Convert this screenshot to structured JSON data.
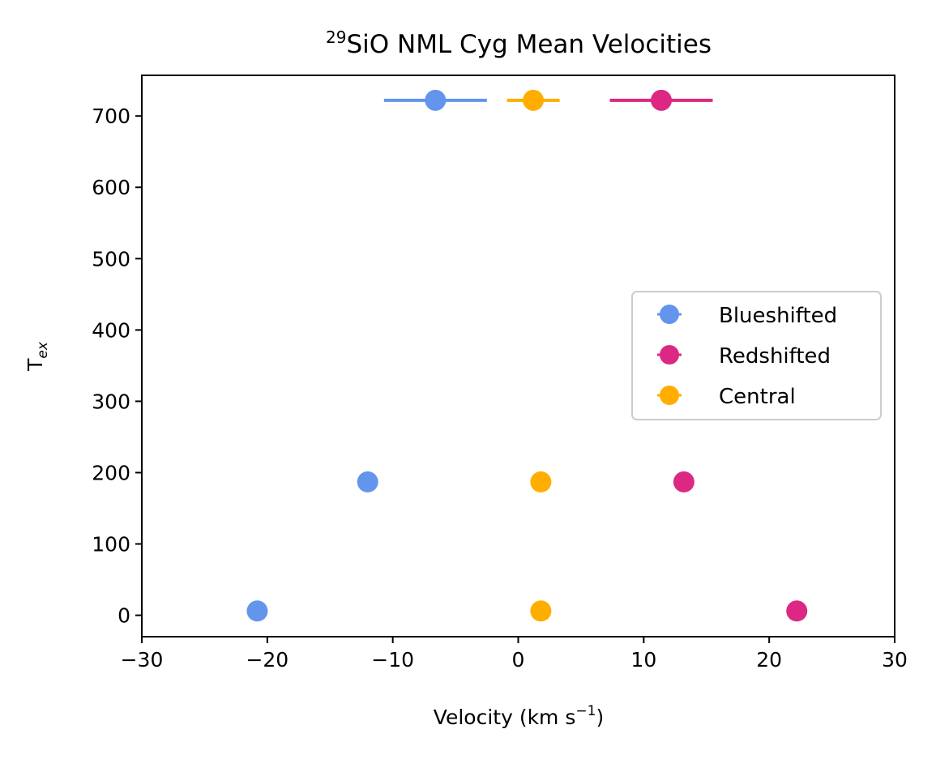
{
  "chart_data": {
    "type": "scatter",
    "title_prefix": "29",
    "title_main": "SiO NML Cyg Mean Velocities",
    "xlabel_main": "Velocity (km s",
    "xlabel_sup": "−1",
    "xlabel_close": ")",
    "ylabel_main": "T",
    "ylabel_sub": "ex",
    "xlim": [
      -30,
      30
    ],
    "ylim": [
      -30,
      757
    ],
    "xticks": [
      -30,
      -20,
      -10,
      0,
      10,
      20,
      30
    ],
    "xtick_labels": [
      "−30",
      "−20",
      "−10",
      "0",
      "10",
      "20",
      "30"
    ],
    "yticks": [
      0,
      100,
      200,
      300,
      400,
      500,
      600,
      700
    ],
    "ytick_labels": [
      "0",
      "100",
      "200",
      "300",
      "400",
      "500",
      "600",
      "700"
    ],
    "legend_position": "center-right",
    "series": [
      {
        "name": "Blueshifted",
        "color": "#6495ed",
        "x": [
          -20.8,
          -12.0,
          -6.6
        ],
        "y": [
          6,
          187,
          722
        ],
        "xerr": [
          0,
          0,
          4.1
        ]
      },
      {
        "name": "Redshifted",
        "color": "#dd2883",
        "x": [
          22.2,
          13.2,
          11.4
        ],
        "y": [
          6,
          187,
          722
        ],
        "xerr": [
          0,
          0,
          4.1
        ]
      },
      {
        "name": "Central",
        "color": "#ffae00",
        "x": [
          1.8,
          1.8,
          1.2
        ],
        "y": [
          6,
          187,
          722
        ],
        "xerr": [
          0,
          0,
          2.1
        ]
      }
    ]
  }
}
